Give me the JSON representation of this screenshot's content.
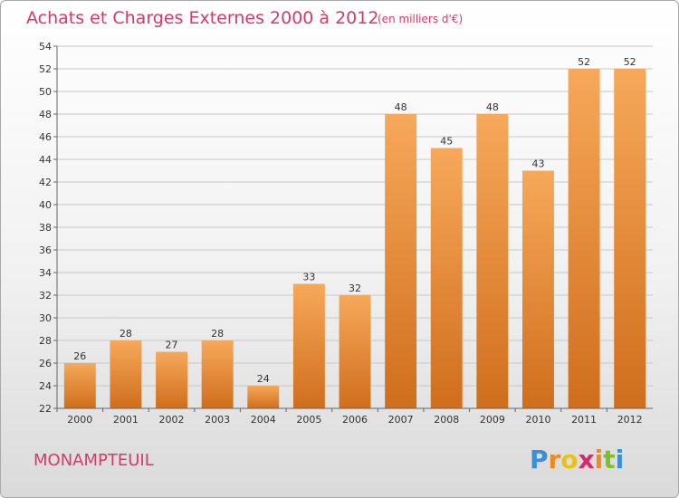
{
  "title": "Achats et Charges Externes 2000 à 2012",
  "subtitle": "(en milliers d'€)",
  "location": "MONAMPTEUIL",
  "logo": {
    "letters": [
      "P",
      "r",
      "o",
      "x",
      "i",
      "t",
      "i"
    ],
    "colors": [
      "#3a8fd8",
      "#f08a1e",
      "#e8c21a",
      "#d82a6a",
      "#f08a1e",
      "#7cbf2a",
      "#3a8fd8"
    ]
  },
  "colors": {
    "title": "#d6396a",
    "bar_light": "#f7a85a",
    "bar_dark": "#cf6e1c",
    "grid": "#c8c8c8"
  },
  "chart_data": {
    "type": "bar",
    "categories": [
      "2000",
      "2001",
      "2002",
      "2003",
      "2004",
      "2005",
      "2006",
      "2007",
      "2008",
      "2009",
      "2010",
      "2011",
      "2012"
    ],
    "values": [
      26,
      28,
      27,
      28,
      24,
      33,
      32,
      48,
      45,
      48,
      43,
      52,
      52
    ],
    "ylim": [
      22,
      54
    ],
    "yticks": [
      22,
      24,
      26,
      28,
      30,
      32,
      34,
      36,
      38,
      40,
      42,
      44,
      46,
      48,
      50,
      52,
      54
    ],
    "grid": true,
    "legend": "none"
  }
}
